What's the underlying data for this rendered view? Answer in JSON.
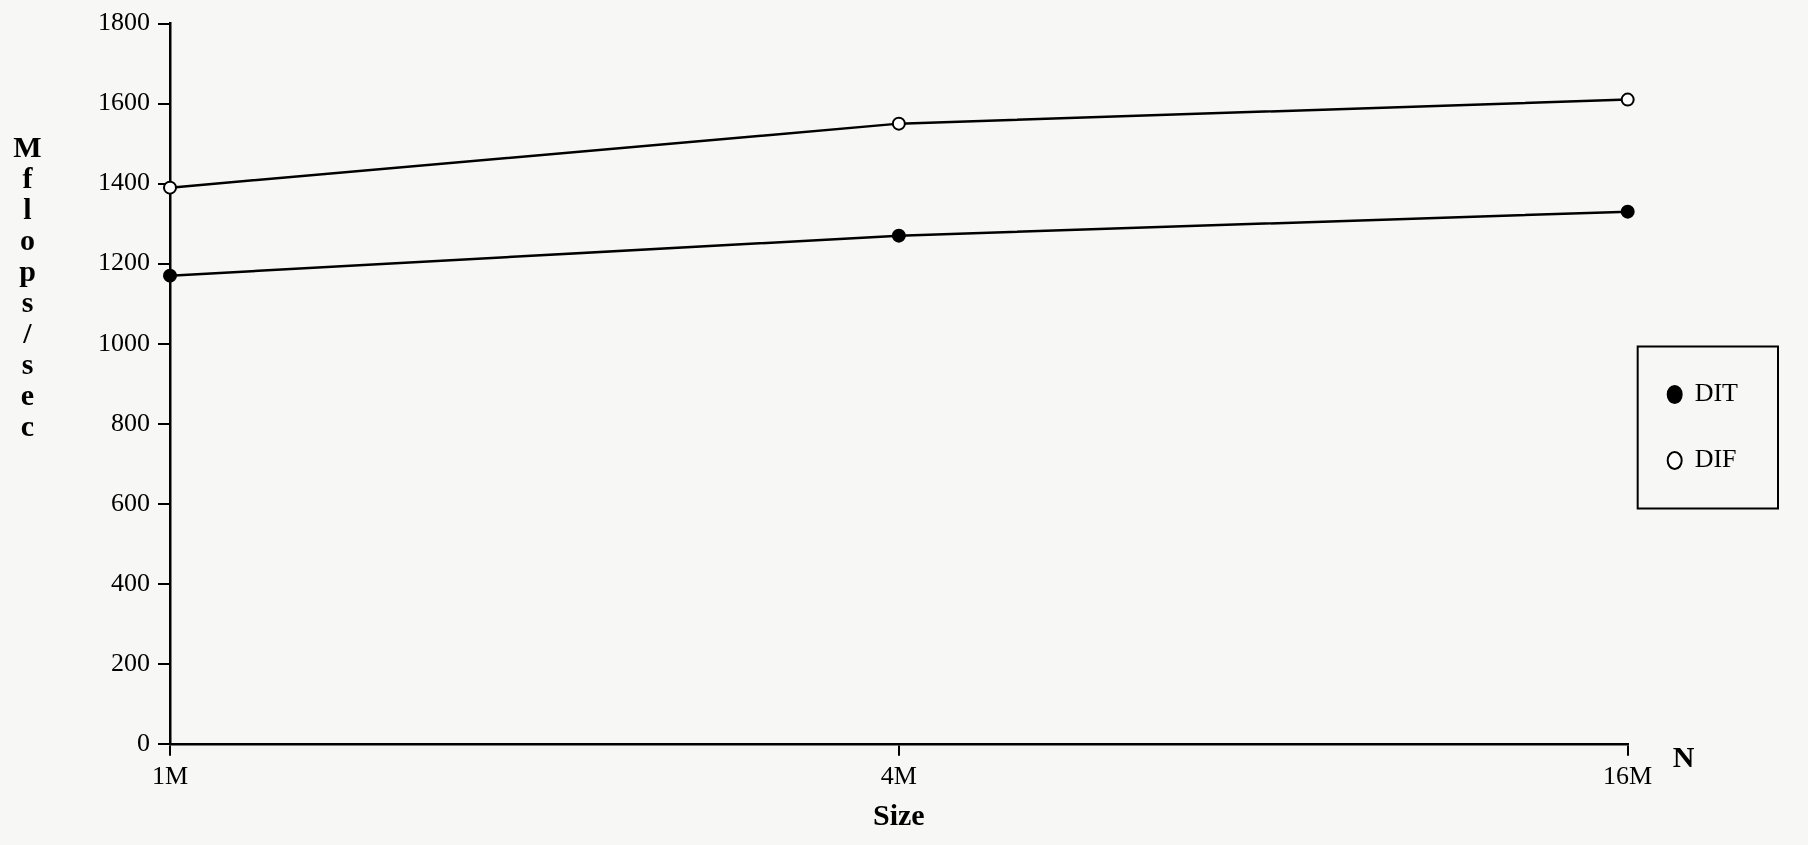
{
  "chart_data": {
    "type": "line",
    "xlabel": "Size",
    "ylabel": "Mflops/sec",
    "categories": [
      "1M",
      "4M",
      "16M"
    ],
    "series": [
      {
        "name": "DIT",
        "color": "#000000",
        "values": [
          1170,
          1270,
          1330
        ]
      },
      {
        "name": "DIF",
        "color": "#000000",
        "values": [
          1390,
          1550,
          1610
        ]
      }
    ],
    "ylim": [
      0,
      1800
    ],
    "yticks": [
      0,
      200,
      400,
      600,
      800,
      1000,
      1200,
      1400,
      1600,
      1800
    ],
    "grid": false,
    "legend": "right",
    "marker": "circle",
    "line_style": "solid",
    "annotations": [
      "N"
    ]
  }
}
